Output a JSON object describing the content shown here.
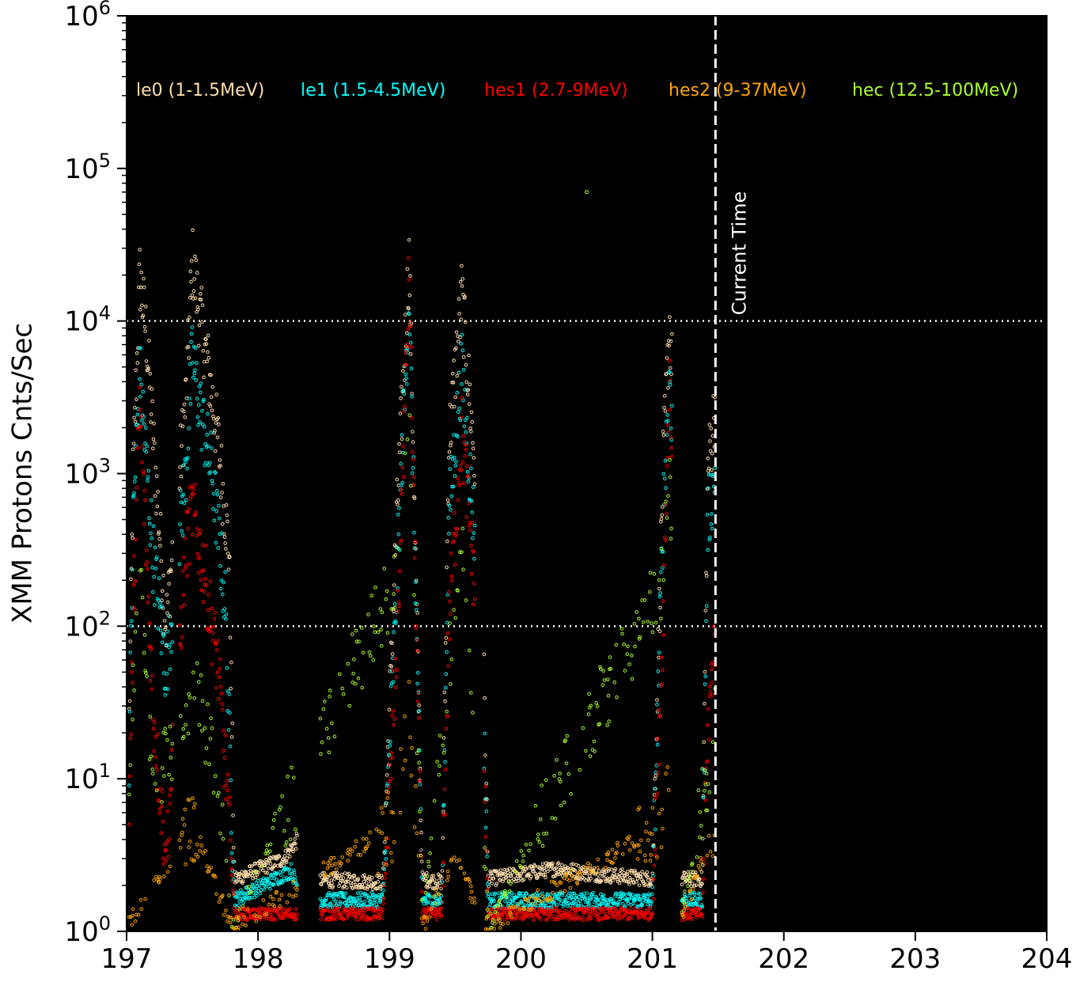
{
  "chart_data": {
    "type": "scatter",
    "title": "",
    "xlabel": "",
    "ylabel": "XMM Protons Cnts/Sec",
    "xlim": [
      197,
      204
    ],
    "ylim": [
      1,
      1000000
    ],
    "yscale": "log",
    "x_ticks": [
      "197",
      "198",
      "199",
      "200",
      "201",
      "202",
      "203",
      "204"
    ],
    "y_ticks": [
      {
        "value": 1,
        "base": "10",
        "exp": "0"
      },
      {
        "value": 10,
        "base": "10",
        "exp": "1"
      },
      {
        "value": 100,
        "base": "10",
        "exp": "2"
      },
      {
        "value": 1000,
        "base": "10",
        "exp": "3"
      },
      {
        "value": 10000,
        "base": "10",
        "exp": "4"
      },
      {
        "value": 100000,
        "base": "10",
        "exp": "5"
      },
      {
        "value": 1000000,
        "base": "10",
        "exp": "6"
      }
    ],
    "background": "#000000",
    "reference_lines": [
      {
        "axis": "y",
        "value": 100,
        "style": "dotted",
        "color": "#ffffff"
      },
      {
        "axis": "y",
        "value": 10000,
        "style": "dotted",
        "color": "#ffffff"
      }
    ],
    "current_time": {
      "x": 201.48,
      "label": "Current Time",
      "style": "dashed",
      "color": "#ffffff"
    },
    "legend_placement": "top",
    "legend": [
      {
        "label": "le0 (1-1.5MeV)",
        "color": "#ffdead"
      },
      {
        "label": "le1 (1.5-4.5MeV)",
        "color": "#00ffff"
      },
      {
        "label": "hes1 (2.7-9MeV)",
        "color": "#ff0000"
      },
      {
        "label": "hes2 (9-37MeV)",
        "color": "#ffa500"
      },
      {
        "label": "hec (12.5-100MeV)",
        "color": "#adff2f"
      }
    ],
    "series": [
      {
        "key": "le0",
        "color": "#ffdead",
        "quiet": 2.1,
        "quiet_spread": 0.05,
        "sparsity": 1,
        "segments": [
          [
            197.0,
            2.0
          ],
          [
            197.05,
            1000
          ],
          [
            197.1,
            20000
          ],
          [
            197.15,
            8000
          ],
          [
            197.3,
            100
          ],
          [
            197.45,
            3000
          ],
          [
            197.5,
            25000
          ],
          [
            197.55,
            12000
          ],
          [
            197.62,
            5000
          ],
          [
            197.7,
            1500
          ],
          [
            197.78,
            300
          ],
          [
            197.82,
            2.2
          ],
          [
            198.2,
            3
          ],
          [
            198.3,
            4
          ],
          [
            198.35,
            2.2
          ],
          [
            198.95,
            2.1
          ],
          [
            199.05,
            400
          ],
          [
            199.15,
            26000
          ],
          [
            199.25,
            2.2
          ],
          [
            199.4,
            2.1
          ],
          [
            199.45,
            1500
          ],
          [
            199.55,
            15000
          ],
          [
            199.7,
            300
          ],
          [
            199.75,
            2.2
          ],
          [
            200.3,
            2.6
          ],
          [
            200.5,
            2.4
          ],
          [
            201.0,
            2.2
          ],
          [
            201.08,
            1000
          ],
          [
            201.13,
            10000
          ],
          [
            201.18,
            1500
          ],
          [
            201.22,
            2.2
          ],
          [
            201.38,
            2.2
          ],
          [
            201.42,
            1000
          ],
          [
            201.48,
            3000
          ]
        ]
      },
      {
        "key": "le1",
        "color": "#00ffff",
        "quiet": 1.6,
        "quiet_spread": 0.05,
        "sparsity": 1,
        "segments": [
          [
            197.0,
            1.6
          ],
          [
            197.05,
            500
          ],
          [
            197.1,
            5000
          ],
          [
            197.2,
            300
          ],
          [
            197.3,
            50
          ],
          [
            197.45,
            1000
          ],
          [
            197.5,
            6000
          ],
          [
            197.55,
            3000
          ],
          [
            197.65,
            1000
          ],
          [
            197.75,
            150
          ],
          [
            197.82,
            1.6
          ],
          [
            198.25,
            2.5
          ],
          [
            198.35,
            1.6
          ],
          [
            198.95,
            1.6
          ],
          [
            199.05,
            150
          ],
          [
            199.15,
            15000
          ],
          [
            199.25,
            1.6
          ],
          [
            199.4,
            1.6
          ],
          [
            199.45,
            500
          ],
          [
            199.55,
            5000
          ],
          [
            199.7,
            100
          ],
          [
            199.75,
            1.6
          ],
          [
            201.0,
            1.6
          ],
          [
            201.08,
            500
          ],
          [
            201.13,
            5000
          ],
          [
            201.18,
            500
          ],
          [
            201.22,
            1.6
          ],
          [
            201.38,
            1.6
          ],
          [
            201.42,
            500
          ],
          [
            201.48,
            1000
          ]
        ]
      },
      {
        "key": "hes1",
        "color": "#ff0000",
        "quiet": 1.25,
        "quiet_spread": 0.04,
        "sparsity": 1,
        "segments": [
          [
            197.0,
            1.3
          ],
          [
            197.05,
            100
          ],
          [
            197.1,
            3000
          ],
          [
            197.2,
            30
          ],
          [
            197.3,
            3
          ],
          [
            197.45,
            300
          ],
          [
            197.5,
            600
          ],
          [
            197.6,
            200
          ],
          [
            197.7,
            50
          ],
          [
            197.78,
            5
          ],
          [
            197.82,
            1.3
          ],
          [
            198.95,
            1.3
          ],
          [
            199.05,
            50
          ],
          [
            199.15,
            20000
          ],
          [
            199.25,
            1.3
          ],
          [
            199.4,
            1.3
          ],
          [
            199.45,
            100
          ],
          [
            199.55,
            2000
          ],
          [
            199.7,
            50
          ],
          [
            199.75,
            1.3
          ],
          [
            201.0,
            1.3
          ],
          [
            201.08,
            100
          ],
          [
            201.13,
            5000
          ],
          [
            201.18,
            100
          ],
          [
            201.22,
            1.3
          ],
          [
            201.38,
            1.3
          ],
          [
            201.42,
            20
          ],
          [
            201.48,
            100
          ]
        ]
      },
      {
        "key": "hes2",
        "color": "#ffa500",
        "quiet": 1.05,
        "quiet_spread": 0.06,
        "sparsity": 3,
        "segments": [
          [
            197.0,
            1.05
          ],
          [
            197.5,
            5
          ],
          [
            197.8,
            1.05
          ],
          [
            199.05,
            5
          ],
          [
            199.15,
            30
          ],
          [
            199.25,
            1.05
          ],
          [
            199.5,
            3
          ],
          [
            199.75,
            1.05
          ],
          [
            201.08,
            5
          ],
          [
            201.13,
            15
          ],
          [
            201.2,
            1.05
          ],
          [
            201.48,
            5
          ]
        ]
      },
      {
        "key": "hec",
        "color": "#adff2f",
        "quiet": 1.1,
        "quiet_spread": 0.06,
        "sparsity": 3,
        "segments": [
          [
            197.0,
            1.1
          ],
          [
            197.05,
            50
          ],
          [
            197.1,
            300
          ],
          [
            197.2,
            10
          ],
          [
            197.45,
            20
          ],
          [
            197.5,
            50
          ],
          [
            197.6,
            20
          ],
          [
            197.7,
            10
          ],
          [
            197.8,
            1.1
          ],
          [
            199.05,
            200
          ],
          [
            199.15,
            2000
          ],
          [
            199.25,
            1.1
          ],
          [
            199.45,
            50
          ],
          [
            199.55,
            300
          ],
          [
            199.7,
            10
          ],
          [
            199.75,
            1.1
          ],
          [
            201.08,
            200
          ],
          [
            201.13,
            1000
          ],
          [
            201.2,
            1.1
          ],
          [
            201.42,
            10
          ],
          [
            201.48,
            30
          ]
        ]
      }
    ],
    "extra_points": [
      {
        "series": "hec",
        "x": 200.5,
        "y": 70000
      }
    ],
    "data_gaps": [
      [
        197.35,
        197.4
      ],
      [
        198.3,
        198.47
      ],
      [
        199.65,
        199.72
      ],
      [
        201.15,
        201.22
      ]
    ]
  }
}
